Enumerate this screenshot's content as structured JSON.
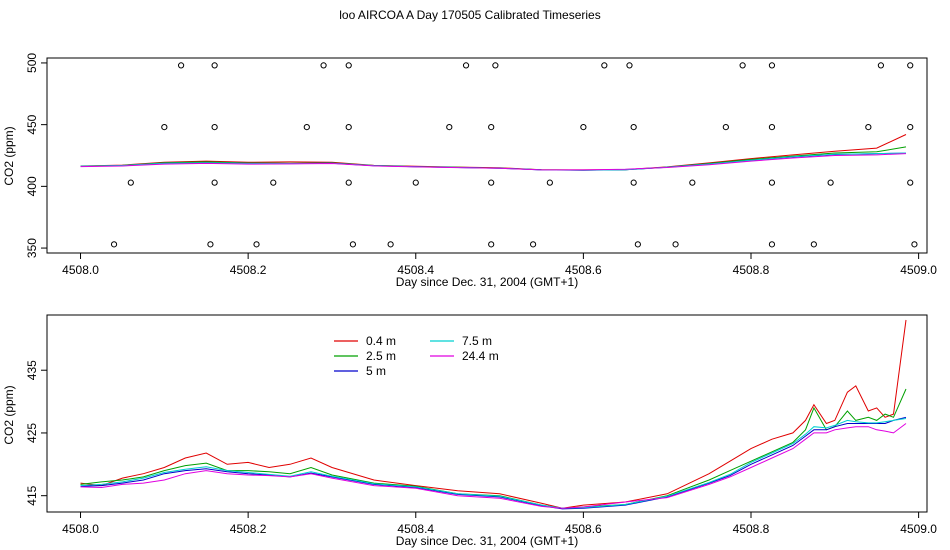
{
  "figure": {
    "title": "loo AIRCOA A  Day 170505  Calibrated Timeseries"
  },
  "chart_data": [
    {
      "type": "line",
      "xlabel": "Day since Dec. 31, 2004 (GMT+1)",
      "ylabel": "CO2 (ppm)",
      "xlim": [
        4507.96,
        4509.01
      ],
      "ylim": [
        346,
        504
      ],
      "xticks": [
        "4508.0",
        "4508.2",
        "4508.4",
        "4508.6",
        "4508.8",
        "4509.0"
      ],
      "xtick_values": [
        4508.0,
        4508.2,
        4508.4,
        4508.6,
        4508.8,
        4509.0
      ],
      "yticks": [
        "350",
        "400",
        "450",
        "500"
      ],
      "ytick_values": [
        350,
        400,
        450,
        500
      ],
      "grid": false,
      "line_anchor_x": [
        4508.0,
        4508.05,
        4508.1,
        4508.15,
        4508.2,
        4508.25,
        4508.3,
        4508.35,
        4508.4,
        4508.45,
        4508.5,
        4508.55,
        4508.6,
        4508.65,
        4508.7,
        4508.75,
        4508.8,
        4508.85,
        4508.9,
        4508.95,
        4508.985
      ],
      "series": [
        {
          "name": "0.4 m",
          "color": "#e00000",
          "values": [
            416.5,
            417.2,
            419.5,
            420.5,
            419.5,
            419.8,
            419.5,
            417.0,
            416.3,
            415.6,
            415.0,
            413.5,
            413.3,
            413.6,
            415.8,
            419.0,
            422.5,
            425.5,
            428.5,
            431.0,
            442.0
          ]
        },
        {
          "name": "2.5 m",
          "color": "#00a000",
          "values": [
            416.4,
            417.0,
            419.2,
            419.8,
            418.9,
            418.8,
            419.0,
            416.9,
            416.0,
            415.4,
            414.8,
            413.4,
            413.2,
            413.5,
            415.6,
            418.5,
            421.8,
            424.5,
            427.0,
            428.0,
            432.0
          ]
        },
        {
          "name": "5 m",
          "color": "#0000cc",
          "values": [
            416.2,
            416.8,
            418.5,
            419.0,
            418.5,
            418.4,
            418.7,
            416.7,
            415.9,
            415.3,
            414.7,
            413.3,
            413.1,
            413.4,
            415.4,
            418.0,
            421.0,
            423.8,
            425.8,
            426.5,
            426.9
          ]
        },
        {
          "name": "7.5 m",
          "color": "#00d0d0",
          "values": [
            416.3,
            416.9,
            418.7,
            419.2,
            418.6,
            418.5,
            418.8,
            416.8,
            415.9,
            415.3,
            414.7,
            413.3,
            413.2,
            413.5,
            415.4,
            418.1,
            421.1,
            424.0,
            426.0,
            426.5,
            427.0
          ]
        },
        {
          "name": "24.4 m",
          "color": "#e000e0",
          "values": [
            416.0,
            416.5,
            418.0,
            418.6,
            418.0,
            418.2,
            418.5,
            416.6,
            415.8,
            415.2,
            414.6,
            413.3,
            413.3,
            413.9,
            415.3,
            417.5,
            420.5,
            423.0,
            425.0,
            425.5,
            426.5
          ]
        }
      ],
      "flagged_points": {
        "marker": "open-circle",
        "x": [
          4508.04,
          4508.155,
          4508.21,
          4508.325,
          4508.37,
          4508.49,
          4508.54,
          4508.665,
          4508.71,
          4508.825,
          4508.875,
          4508.995,
          4508.06,
          4508.16,
          4508.23,
          4508.32,
          4508.4,
          4508.49,
          4508.56,
          4508.66,
          4508.73,
          4508.825,
          4508.895,
          4508.99,
          4508.1,
          4508.16,
          4508.27,
          4508.32,
          4508.44,
          4508.49,
          4508.6,
          4508.66,
          4508.77,
          4508.825,
          4508.94,
          4508.99,
          4508.12,
          4508.16,
          4508.29,
          4508.32,
          4508.46,
          4508.495,
          4508.625,
          4508.655,
          4508.79,
          4508.825,
          4508.955,
          4508.99
        ],
        "y": [
          353,
          353,
          353,
          353,
          353,
          353,
          353,
          353,
          353,
          353,
          353,
          353,
          403,
          403,
          403,
          403,
          403,
          403,
          403,
          403,
          403,
          403,
          403,
          403,
          448,
          448,
          448,
          448,
          448,
          448,
          448,
          448,
          448,
          448,
          448,
          448,
          498,
          498,
          498,
          498,
          498,
          498,
          498,
          498,
          498,
          498,
          498,
          498
        ]
      }
    },
    {
      "type": "line",
      "xlabel": "Day since Dec. 31, 2004 (GMT+1)",
      "ylabel": "CO2 (ppm)",
      "xlim": [
        4507.96,
        4509.01
      ],
      "ylim": [
        412.4,
        443.8
      ],
      "xticks": [
        "4508.0",
        "4508.2",
        "4508.4",
        "4508.6",
        "4508.8",
        "4509.0"
      ],
      "xtick_values": [
        4508.0,
        4508.2,
        4508.4,
        4508.6,
        4508.8,
        4509.0
      ],
      "yticks": [
        "415",
        "425",
        "435"
      ],
      "ytick_values": [
        415,
        425,
        435
      ],
      "grid": false,
      "legend": {
        "placement": "top-left",
        "entries": [
          "0.4 m",
          "2.5 m",
          "5 m",
          "7.5 m",
          "24.4 m"
        ]
      },
      "line_anchor_x": [
        4508.0,
        4508.025,
        4508.05,
        4508.075,
        4508.1,
        4508.125,
        4508.15,
        4508.175,
        4508.2,
        4508.225,
        4508.25,
        4508.275,
        4508.3,
        4508.35,
        4508.4,
        4508.45,
        4508.5,
        4508.55,
        4508.575,
        4508.6,
        4508.65,
        4508.7,
        4508.75,
        4508.775,
        4508.8,
        4508.825,
        4508.85,
        4508.865,
        4508.875,
        4508.89,
        4508.9,
        4508.915,
        4508.925,
        4508.94,
        4508.95,
        4508.96,
        4508.97,
        4508.985
      ],
      "series": [
        {
          "name": "0.4 m",
          "color": "#e00000",
          "values": [
            417.0,
            416.6,
            417.8,
            418.5,
            419.5,
            421.0,
            421.8,
            420.0,
            420.3,
            419.5,
            420.0,
            421.0,
            419.5,
            417.5,
            416.6,
            415.8,
            415.3,
            413.8,
            413.0,
            413.5,
            414.0,
            415.3,
            418.5,
            420.5,
            422.5,
            424.0,
            425.0,
            427.0,
            429.5,
            426.5,
            427.0,
            431.5,
            432.5,
            428.5,
            429.0,
            427.5,
            428.0,
            443.0
          ]
        },
        {
          "name": "2.5 m",
          "color": "#00a000",
          "values": [
            416.8,
            417.2,
            417.5,
            418.0,
            419.0,
            419.8,
            420.2,
            419.0,
            419.0,
            418.8,
            418.5,
            419.5,
            418.3,
            417.0,
            416.5,
            415.3,
            415.0,
            413.5,
            413.0,
            413.2,
            413.6,
            415.0,
            417.5,
            419.0,
            420.5,
            422.0,
            423.5,
            425.5,
            429.0,
            425.5,
            426.0,
            428.5,
            427.0,
            427.5,
            427.0,
            428.0,
            427.5,
            432.0
          ]
        },
        {
          "name": "5 m",
          "color": "#0000cc",
          "values": [
            416.5,
            416.6,
            417.0,
            417.5,
            418.5,
            419.0,
            419.3,
            418.8,
            418.5,
            418.3,
            418.0,
            418.6,
            418.0,
            416.8,
            416.3,
            415.2,
            414.8,
            413.4,
            412.9,
            413.0,
            413.5,
            414.8,
            417.0,
            418.2,
            420.0,
            421.5,
            423.0,
            424.5,
            425.5,
            425.5,
            426.0,
            426.5,
            426.5,
            426.5,
            426.5,
            426.5,
            427.0,
            427.5
          ]
        },
        {
          "name": "7.5 m",
          "color": "#00d0d0",
          "values": [
            416.6,
            416.8,
            417.2,
            417.8,
            418.7,
            419.2,
            419.6,
            419.0,
            418.7,
            418.4,
            418.1,
            418.8,
            418.1,
            416.9,
            416.4,
            415.3,
            414.9,
            413.5,
            413.0,
            413.1,
            413.6,
            414.9,
            417.1,
            418.4,
            420.3,
            421.8,
            423.3,
            424.8,
            426.0,
            425.8,
            426.2,
            427.0,
            426.8,
            426.6,
            426.6,
            426.8,
            427.0,
            427.3
          ]
        },
        {
          "name": "24.4 m",
          "color": "#e000e0",
          "values": [
            416.4,
            416.3,
            416.8,
            417.0,
            417.5,
            418.5,
            419.0,
            418.5,
            418.3,
            418.2,
            418.0,
            418.5,
            417.8,
            416.6,
            416.2,
            415.0,
            414.6,
            413.3,
            413.0,
            413.2,
            414.0,
            414.7,
            416.8,
            418.0,
            419.5,
            421.0,
            422.5,
            424.0,
            425.0,
            425.0,
            425.5,
            425.8,
            426.0,
            426.0,
            425.5,
            425.3,
            425.0,
            426.5
          ]
        }
      ]
    }
  ]
}
